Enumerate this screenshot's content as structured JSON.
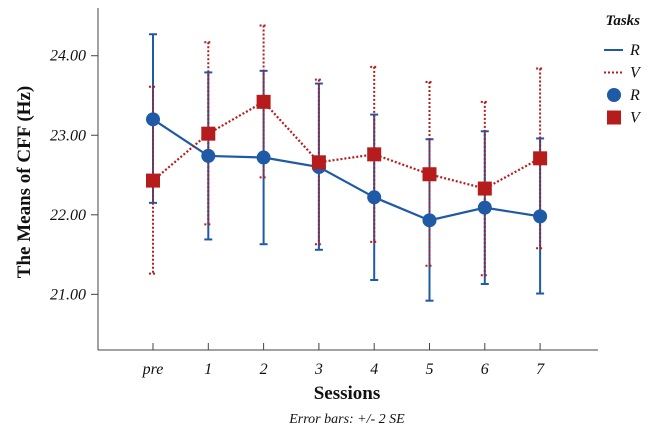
{
  "chart_data": {
    "type": "line",
    "categories": [
      "pre",
      "1",
      "2",
      "3",
      "4",
      "5",
      "6",
      "7"
    ],
    "xlabel": "Sessions",
    "ylabel": "The Means of CFF (Hz)",
    "note": "Error bars: +/- 2 SE",
    "y_ticks": [
      "21.00",
      "22.00",
      "23.00",
      "24.00"
    ],
    "ylim": [
      20.3,
      24.6
    ],
    "grid": false,
    "legend": {
      "title": "Tasks",
      "placement": "top-right",
      "entries": [
        {
          "label": "R",
          "kind": "line",
          "series": "R"
        },
        {
          "label": "V",
          "kind": "line",
          "series": "V"
        },
        {
          "label": "R",
          "kind": "marker",
          "series": "R"
        },
        {
          "label": "V",
          "kind": "marker",
          "series": "V"
        }
      ]
    },
    "series": [
      {
        "name": "R",
        "color": "#1f5aa6",
        "line_style": "solid",
        "marker": "circle",
        "values": [
          23.2,
          22.74,
          22.72,
          22.6,
          22.22,
          21.93,
          22.09,
          21.98
        ],
        "error_low": [
          22.15,
          21.69,
          21.63,
          21.56,
          21.18,
          20.92,
          21.13,
          21.01
        ],
        "error_high": [
          24.27,
          23.79,
          23.81,
          23.65,
          23.26,
          22.95,
          23.05,
          22.96
        ]
      },
      {
        "name": "V",
        "color": "#b71c1c",
        "line_style": "dotted",
        "marker": "square",
        "values": [
          22.43,
          23.02,
          23.42,
          22.66,
          22.76,
          22.51,
          22.33,
          22.71
        ],
        "error_low": [
          21.26,
          21.88,
          22.47,
          21.63,
          21.66,
          21.36,
          21.24,
          21.58
        ],
        "error_high": [
          23.61,
          24.17,
          24.38,
          23.7,
          23.86,
          23.67,
          23.42,
          23.84
        ]
      }
    ]
  }
}
